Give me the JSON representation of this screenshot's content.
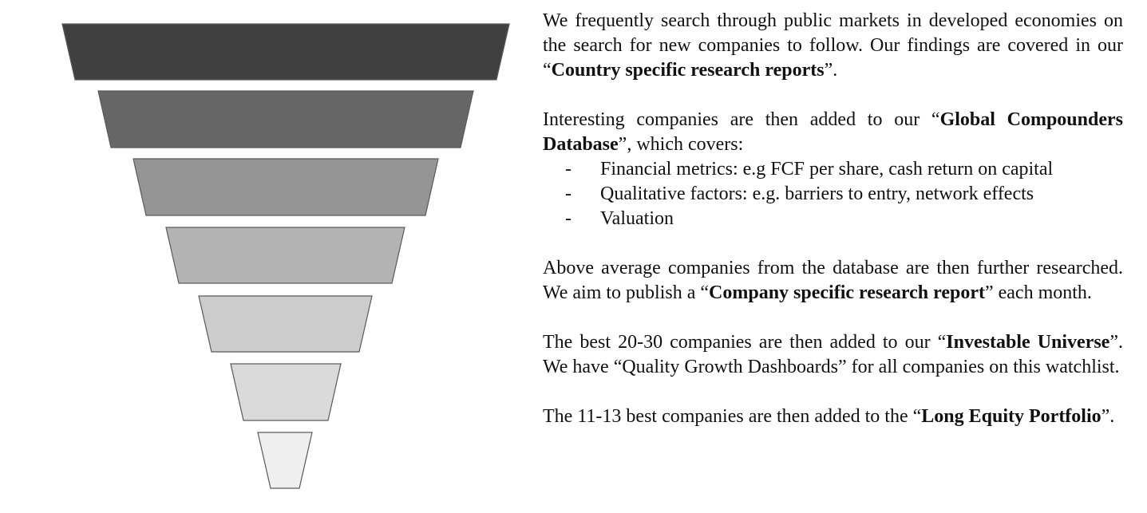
{
  "funnel": {
    "levels": [
      {
        "color": "#404040"
      },
      {
        "color": "#666666"
      },
      {
        "color": "#959595"
      },
      {
        "color": "#b3b3b3"
      },
      {
        "color": "#cccccc"
      },
      {
        "color": "#dadada"
      },
      {
        "color": "#efefef"
      }
    ],
    "stroke": "#5a5a5a"
  },
  "text": {
    "p1": {
      "a": "We frequently search through public markets in developed economies on the search for new companies to follow. Our findings are covered in our “",
      "b": "Country specific research reports",
      "c": "”."
    },
    "p2": {
      "a": "Interesting companies are then added to our “",
      "b": "Global Compounders Database",
      "c": "”, which covers:"
    },
    "bullets": [
      {
        "dash": "-",
        "text": "Financial metrics: e.g FCF per share, cash return on capital"
      },
      {
        "dash": "-",
        "text": "Qualitative factors: e.g. barriers to entry, network effects"
      },
      {
        "dash": "-",
        "text": "Valuation"
      }
    ],
    "p3": {
      "a": "Above average companies from the database are then further researched. We aim to publish a “",
      "b": "Company specific research report",
      "c": "” each month."
    },
    "p4": {
      "a": "The best 20-30 companies are then added to our “",
      "b": "Investable Universe",
      "c": "”. We have “Quality Growth Dashboards” for all companies on this watchlist."
    },
    "p5": {
      "a": "The 11-13 best companies are then added to the “",
      "b": "Long Equity Portfolio",
      "c": "”."
    }
  }
}
